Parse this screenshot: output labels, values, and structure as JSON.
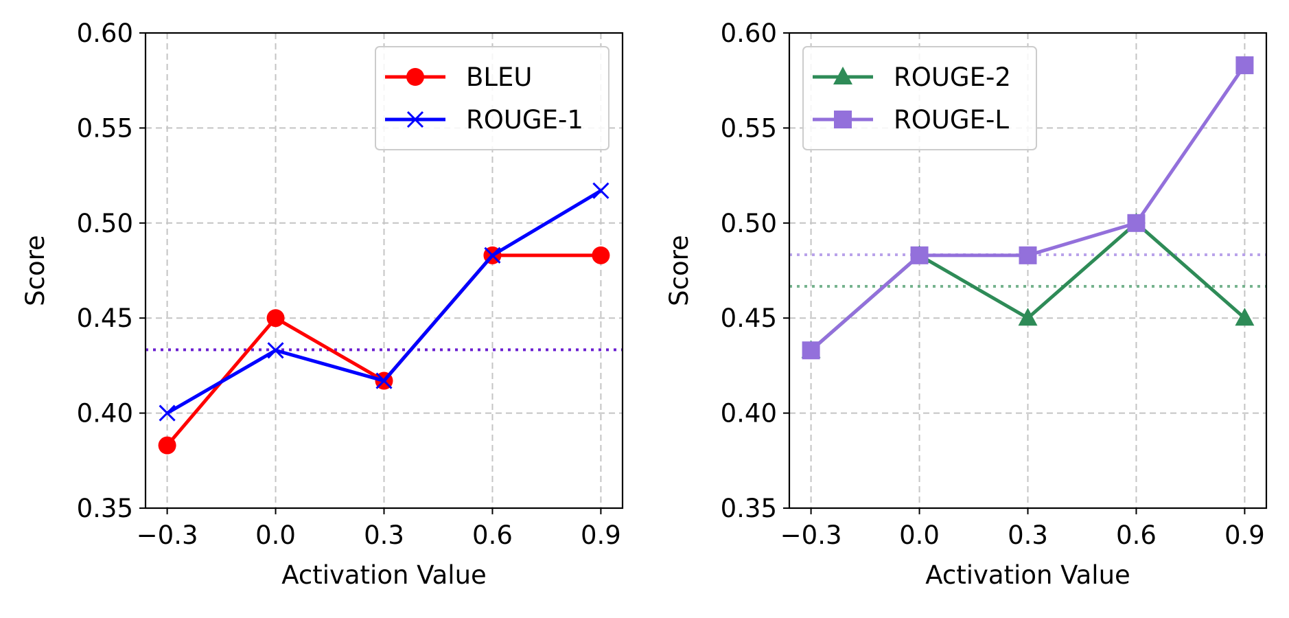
{
  "chart_data": [
    {
      "type": "line",
      "xlabel": "Activation Value",
      "ylabel": "Score",
      "x": [
        -0.3,
        0.0,
        0.3,
        0.6,
        0.9
      ],
      "xticks": [
        "−0.3",
        "0.0",
        "0.3",
        "0.6",
        "0.9"
      ],
      "xlim": [
        -0.36,
        0.96
      ],
      "ylim": [
        0.35,
        0.6
      ],
      "yticks": [
        "0.35",
        "0.40",
        "0.45",
        "0.50",
        "0.55",
        "0.60"
      ],
      "grid": true,
      "legend_position": "top-right",
      "series": [
        {
          "name": "BLEU",
          "values": [
            0.383,
            0.45,
            0.417,
            0.483,
            0.483
          ],
          "color": "#ff0000",
          "marker": "circle"
        },
        {
          "name": "ROUGE-1",
          "values": [
            0.4,
            0.433,
            0.417,
            0.483,
            0.517
          ],
          "color": "#0000ff",
          "marker": "x"
        }
      ],
      "reference_lines": [
        {
          "y": 0.4333,
          "color": "#6a1fd0",
          "style": "dotted"
        }
      ]
    },
    {
      "type": "line",
      "xlabel": "Activation Value",
      "ylabel": "Score",
      "x": [
        -0.3,
        0.0,
        0.3,
        0.6,
        0.9
      ],
      "xticks": [
        "−0.3",
        "0.0",
        "0.3",
        "0.6",
        "0.9"
      ],
      "xlim": [
        -0.36,
        0.96
      ],
      "ylim": [
        0.35,
        0.6
      ],
      "yticks": [
        "0.35",
        "0.40",
        "0.45",
        "0.50",
        "0.55",
        "0.60"
      ],
      "grid": true,
      "legend_position": "top-left",
      "series": [
        {
          "name": "ROUGE-2",
          "values": [
            0.433,
            0.483,
            0.45,
            0.5,
            0.45
          ],
          "color": "#2e8b57",
          "marker": "triangle"
        },
        {
          "name": "ROUGE-L",
          "values": [
            0.433,
            0.483,
            0.483,
            0.5,
            0.583
          ],
          "color": "#9370db",
          "marker": "square"
        }
      ],
      "reference_lines": [
        {
          "y": 0.4833,
          "color": "#b9a2ea",
          "style": "dotted"
        },
        {
          "y": 0.4667,
          "color": "#76b38e",
          "style": "dotted"
        }
      ]
    }
  ]
}
